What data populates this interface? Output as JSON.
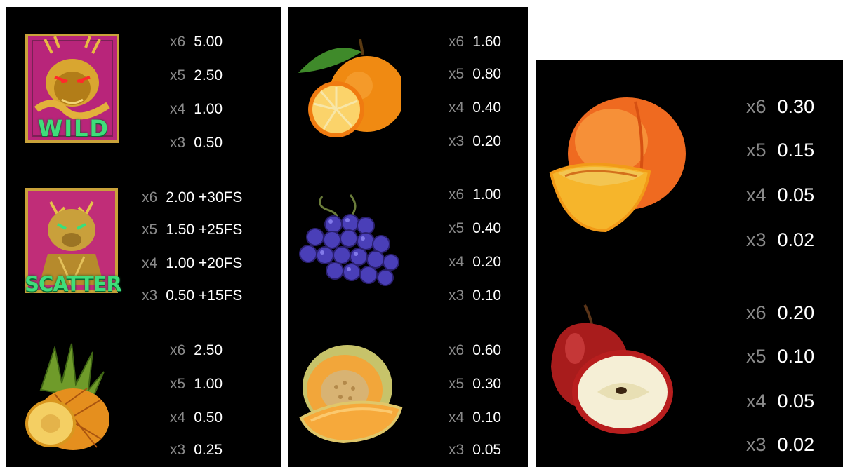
{
  "symbols": [
    {
      "icon": "dragon-wild-icon",
      "label": "WILD",
      "payouts": [
        {
          "mult": "x6",
          "value": "5.00"
        },
        {
          "mult": "x5",
          "value": "2.50"
        },
        {
          "mult": "x4",
          "value": "1.00"
        },
        {
          "mult": "x3",
          "value": "0.50"
        }
      ]
    },
    {
      "icon": "tiger-scatter-icon",
      "label": "SCATTER",
      "payouts": [
        {
          "mult": "x6",
          "value": "2.00 +30FS"
        },
        {
          "mult": "x5",
          "value": "1.50 +25FS"
        },
        {
          "mult": "x4",
          "value": "1.00 +20FS"
        },
        {
          "mult": "x3",
          "value": "0.50 +15FS"
        }
      ]
    },
    {
      "icon": "pineapple-icon",
      "payouts": [
        {
          "mult": "x6",
          "value": "2.50"
        },
        {
          "mult": "x5",
          "value": "1.00"
        },
        {
          "mult": "x4",
          "value": "0.50"
        },
        {
          "mult": "x3",
          "value": "0.25"
        }
      ]
    },
    {
      "icon": "orange-icon",
      "payouts": [
        {
          "mult": "x6",
          "value": "1.60"
        },
        {
          "mult": "x5",
          "value": "0.80"
        },
        {
          "mult": "x4",
          "value": "0.40"
        },
        {
          "mult": "x3",
          "value": "0.20"
        }
      ]
    },
    {
      "icon": "grapes-icon",
      "payouts": [
        {
          "mult": "x6",
          "value": "1.00"
        },
        {
          "mult": "x5",
          "value": "0.40"
        },
        {
          "mult": "x4",
          "value": "0.20"
        },
        {
          "mult": "x3",
          "value": "0.10"
        }
      ]
    },
    {
      "icon": "melon-icon",
      "payouts": [
        {
          "mult": "x6",
          "value": "0.60"
        },
        {
          "mult": "x5",
          "value": "0.30"
        },
        {
          "mult": "x4",
          "value": "0.10"
        },
        {
          "mult": "x3",
          "value": "0.05"
        }
      ]
    },
    {
      "icon": "peach-icon",
      "payouts": [
        {
          "mult": "x6",
          "value": "0.30"
        },
        {
          "mult": "x5",
          "value": "0.15"
        },
        {
          "mult": "x4",
          "value": "0.05"
        },
        {
          "mult": "x3",
          "value": "0.02"
        }
      ]
    },
    {
      "icon": "apple-icon",
      "payouts": [
        {
          "mult": "x6",
          "value": "0.20"
        },
        {
          "mult": "x5",
          "value": "0.10"
        },
        {
          "mult": "x4",
          "value": "0.05"
        },
        {
          "mult": "x3",
          "value": "0.02"
        }
      ]
    }
  ]
}
